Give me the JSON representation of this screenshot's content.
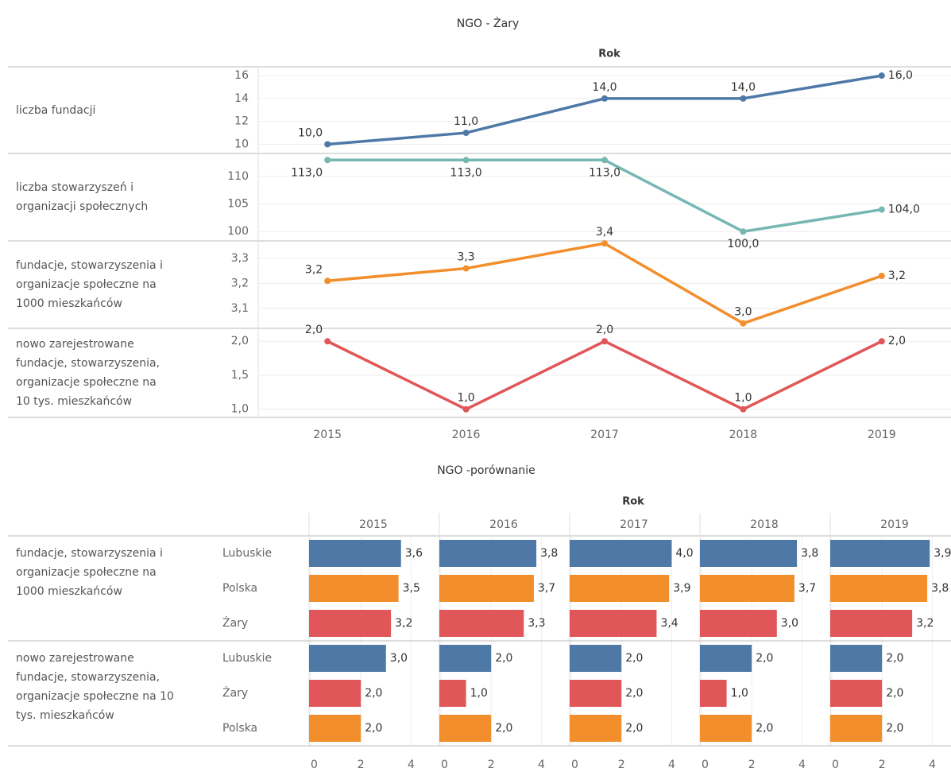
{
  "chart_data": [
    {
      "type": "line",
      "title": "NGO - Żary",
      "column_header": "Rok",
      "categories": [
        "2015",
        "2016",
        "2017",
        "2018",
        "2019"
      ],
      "panels": [
        {
          "label": [
            "liczba fundacji"
          ],
          "color": "#4e79a7",
          "values": [
            10,
            11,
            14,
            14,
            16
          ],
          "value_labels": [
            "10,0",
            "11,0",
            "14,0",
            "14,0",
            "16,0"
          ],
          "ylim": [
            9.2,
            16.7
          ],
          "yticks": [
            10,
            12,
            14,
            16
          ]
        },
        {
          "label": [
            "liczba stowarzyszeń i",
            "organizacji społecznych"
          ],
          "color": "#76b7b2",
          "values": [
            113,
            113,
            113,
            100,
            104
          ],
          "value_labels": [
            "113,0",
            "113,0",
            "113,0",
            "100,0",
            "104,0"
          ],
          "ylim": [
            98.3,
            114.2
          ],
          "yticks": [
            100,
            105,
            110
          ]
        },
        {
          "label": [
            "fundacje, stowarzyszenia i",
            "organizacje społeczne na",
            "1000 mieszkańców"
          ],
          "color": "#f28e2b",
          "values": [
            3.21,
            3.26,
            3.36,
            3.04,
            3.23
          ],
          "value_labels": [
            "3,2",
            "3,3",
            "3,4",
            "3,0",
            "3,2"
          ],
          "ylim": [
            3.02,
            3.37
          ],
          "yticks": [
            {
              "value": 3.1,
              "label": "3,1"
            },
            {
              "value": 3.2,
              "label": "3,2"
            },
            {
              "value": 3.3,
              "label": "3,3"
            }
          ]
        },
        {
          "label": [
            "nowo zarejestrowane",
            "fundacje, stowarzyszenia,",
            "organizacje społeczne na",
            "10 tys. mieszkańców"
          ],
          "color": "#e15759",
          "values": [
            2,
            1,
            2,
            1,
            2
          ],
          "value_labels": [
            "2,0",
            "1,0",
            "2,0",
            "1,0",
            "2,0"
          ],
          "ylim": [
            0.88,
            2.19
          ],
          "yticks": [
            {
              "value": 1,
              "label": "1,0"
            },
            {
              "value": 1.5,
              "label": "1,5"
            },
            {
              "value": 2,
              "label": "2,0"
            }
          ]
        }
      ]
    },
    {
      "type": "bar",
      "title": "NGO -porównanie",
      "column_header": "Rok",
      "columns": [
        "2015",
        "2016",
        "2017",
        "2018",
        "2019"
      ],
      "xlim": [
        0,
        5
      ],
      "xticks": [
        0,
        2,
        4
      ],
      "groups": [
        {
          "label": [
            "fundacje, stowarzyszenia i",
            "organizacje społeczne na",
            "1000 mieszkańców"
          ],
          "series": [
            {
              "name": "Lubuskie",
              "color": "#4e79a7",
              "values": [
                3.6,
                3.8,
                4.0,
                3.8,
                3.9
              ],
              "value_labels": [
                "3,6",
                "3,8",
                "4,0",
                "3,8",
                "3,9"
              ]
            },
            {
              "name": "Polska",
              "color": "#f28e2b",
              "values": [
                3.5,
                3.7,
                3.9,
                3.7,
                3.8
              ],
              "value_labels": [
                "3,5",
                "3,7",
                "3,9",
                "3,7",
                "3,8"
              ]
            },
            {
              "name": "Żary",
              "color": "#e15759",
              "values": [
                3.2,
                3.3,
                3.4,
                3.0,
                3.2
              ],
              "value_labels": [
                "3,2",
                "3,3",
                "3,4",
                "3,0",
                "3,2"
              ]
            }
          ]
        },
        {
          "label": [
            "nowo zarejestrowane",
            "fundacje, stowarzyszenia,",
            "organizacje społeczne na 10",
            "tys. mieszkańców"
          ],
          "series": [
            {
              "name": "Lubuskie",
              "color": "#4e79a7",
              "values": [
                3,
                2,
                2,
                2,
                2
              ],
              "value_labels": [
                "3,0",
                "2,0",
                "2,0",
                "2,0",
                "2,0"
              ]
            },
            {
              "name": "Żary",
              "color": "#e15759",
              "values": [
                2,
                1,
                2,
                1,
                2
              ],
              "value_labels": [
                "2,0",
                "1,0",
                "2,0",
                "1,0",
                "2,0"
              ]
            },
            {
              "name": "Polska",
              "color": "#f28e2b",
              "values": [
                2,
                2,
                2,
                2,
                2
              ],
              "value_labels": [
                "2,0",
                "2,0",
                "2,0",
                "2,0",
                "2,0"
              ]
            }
          ]
        }
      ]
    }
  ]
}
